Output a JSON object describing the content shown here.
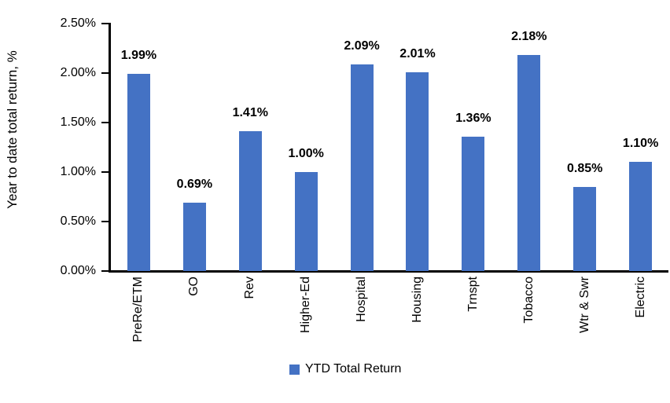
{
  "chart_data": {
    "type": "bar",
    "title": "",
    "ylabel": "Year to date total return, %",
    "xlabel": "",
    "categories": [
      "PreRe/ETM",
      "GO",
      "Rev",
      "Higher-Ed",
      "Hospital",
      "Housing",
      "Trnspt",
      "Tobacco",
      "Wtr & Swr",
      "Electric"
    ],
    "values": [
      1.99,
      0.69,
      1.41,
      1.0,
      2.09,
      2.01,
      1.36,
      2.18,
      0.85,
      1.1
    ],
    "data_labels": [
      "1.99%",
      "0.69%",
      "1.41%",
      "1.00%",
      "2.09%",
      "2.01%",
      "1.36%",
      "2.18%",
      "0.85%",
      "1.10%"
    ],
    "yticks": [
      "2.50%",
      "2.00%",
      "1.50%",
      "1.00%",
      "0.50%",
      "0.00%"
    ],
    "ylim": [
      0,
      2.5
    ],
    "grid": false,
    "legend": [
      "YTD Total Return"
    ],
    "legend_position": "bottom",
    "bar_color": "#4472C4",
    "axis_color": "#000000"
  }
}
